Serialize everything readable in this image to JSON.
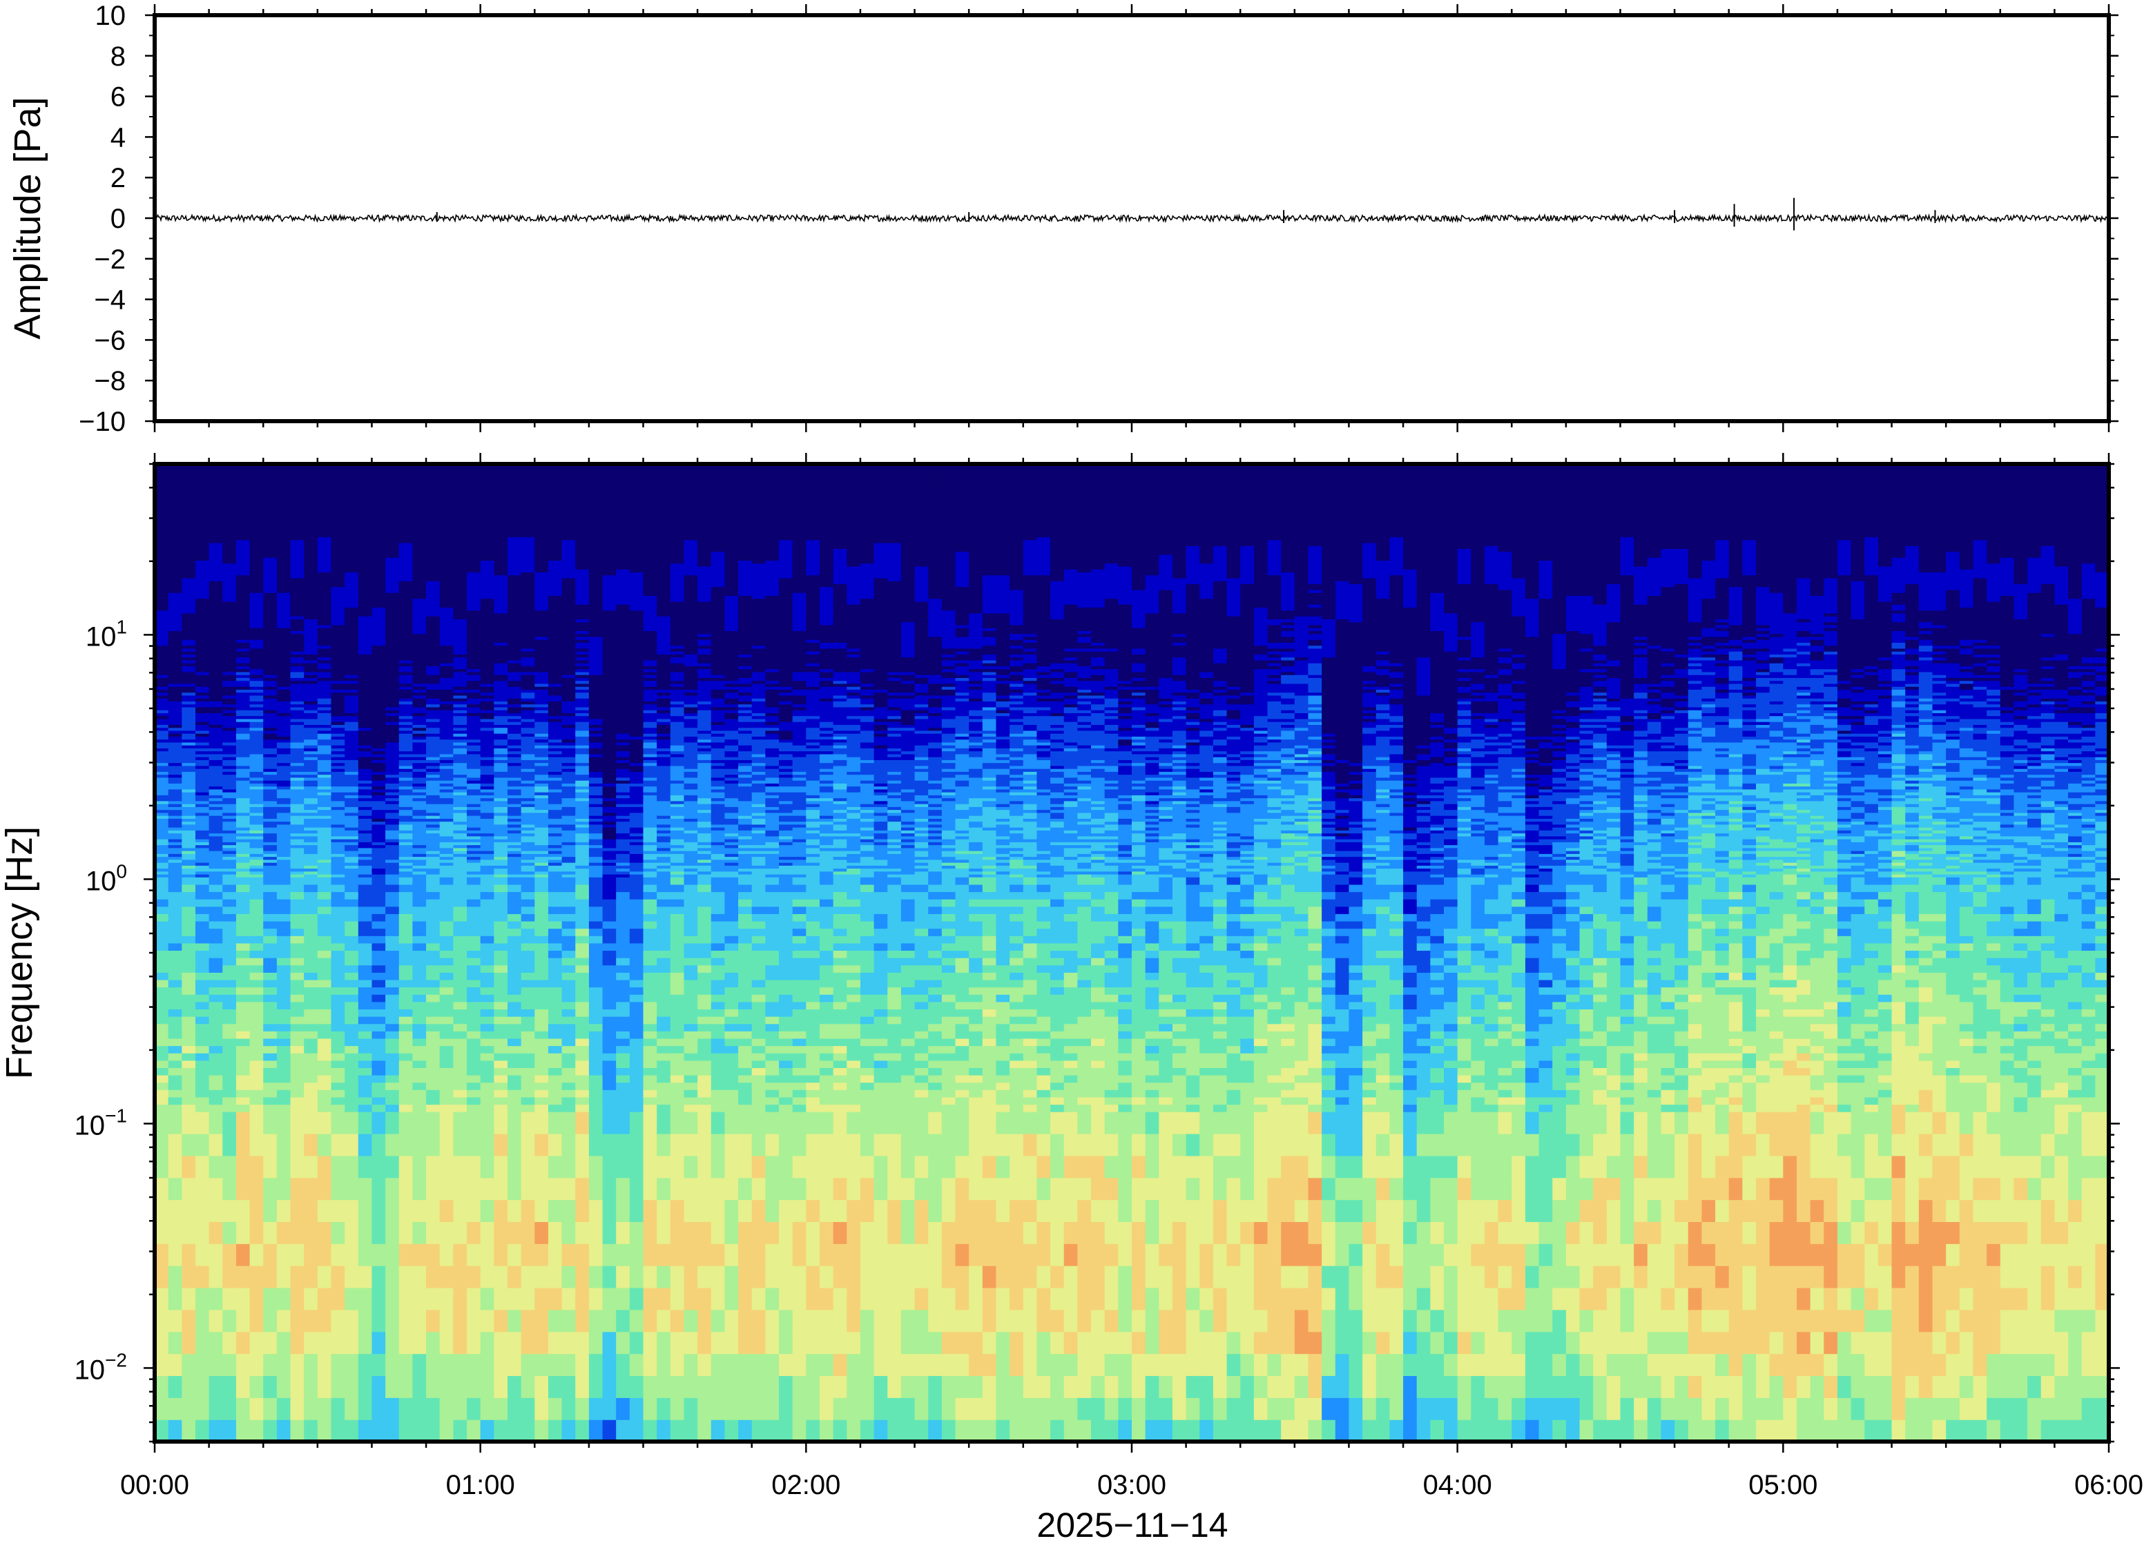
{
  "chart_data": [
    {
      "type": "line",
      "name": "waveform",
      "ylabel": "Amplitude [Pa]",
      "ylim": [
        -10,
        10
      ],
      "yticks": [
        10,
        8,
        6,
        4,
        2,
        0,
        -2,
        -4,
        -6,
        -8,
        -10
      ],
      "ytick_labels": [
        "10",
        "8",
        "6",
        "4",
        "2",
        "0",
        "−2",
        "−4",
        "−6",
        "−8",
        "−10"
      ],
      "xlim": [
        "00:00",
        "06:00"
      ],
      "baseline": 0,
      "noise_amplitude": 0.15,
      "spikes": [
        {
          "x": "00:52",
          "y": 0.3
        },
        {
          "x": "02:30",
          "y": 0.3
        },
        {
          "x": "03:28",
          "y": 0.4
        },
        {
          "x": "04:40",
          "y": 0.4
        },
        {
          "x": "04:51",
          "y": 0.7
        },
        {
          "x": "05:02",
          "y": 1.0
        },
        {
          "x": "05:28",
          "y": 0.4
        }
      ],
      "color": "#000000"
    },
    {
      "type": "heatmap",
      "name": "spectrogram",
      "ylabel": "Frequency [Hz]",
      "yscale": "log",
      "ylim": [
        0.005,
        50
      ],
      "yticks": [
        0.01,
        0.1,
        1,
        10
      ],
      "ytick_labels": [
        {
          "base": "10",
          "exp": "−2"
        },
        {
          "base": "10",
          "exp": "−1"
        },
        {
          "base": "10",
          "exp": "0"
        },
        {
          "base": "10",
          "exp": "1"
        }
      ],
      "xlim": [
        "00:00",
        "06:00"
      ],
      "xticks": [
        "00:00",
        "01:00",
        "02:00",
        "03:00",
        "04:00",
        "05:00",
        "06:00"
      ],
      "xlabel": "2025−11−14",
      "colormap": [
        "#0b006f",
        "#0000c8",
        "#0a46e6",
        "#1e90ff",
        "#3cc8f0",
        "#64e6b4",
        "#aaf096",
        "#e6f08c",
        "#f5d278",
        "#f5a05a"
      ],
      "column_width_minutes": 2.5,
      "high_frequency_cutoff_hz_range": [
        8,
        18
      ],
      "quiet_periods": [
        {
          "start": "00:37",
          "end": "00:45"
        },
        {
          "start": "01:20",
          "end": "01:28"
        },
        {
          "start": "03:35",
          "end": "03:41"
        },
        {
          "start": "03:50",
          "end": "04:00"
        },
        {
          "start": "04:12",
          "end": "04:18"
        }
      ],
      "energetic_periods": [
        {
          "start": "02:27",
          "end": "02:33"
        },
        {
          "start": "03:27",
          "end": "03:33"
        },
        {
          "start": "04:42",
          "end": "05:10"
        },
        {
          "start": "05:20",
          "end": "05:35"
        }
      ]
    }
  ]
}
